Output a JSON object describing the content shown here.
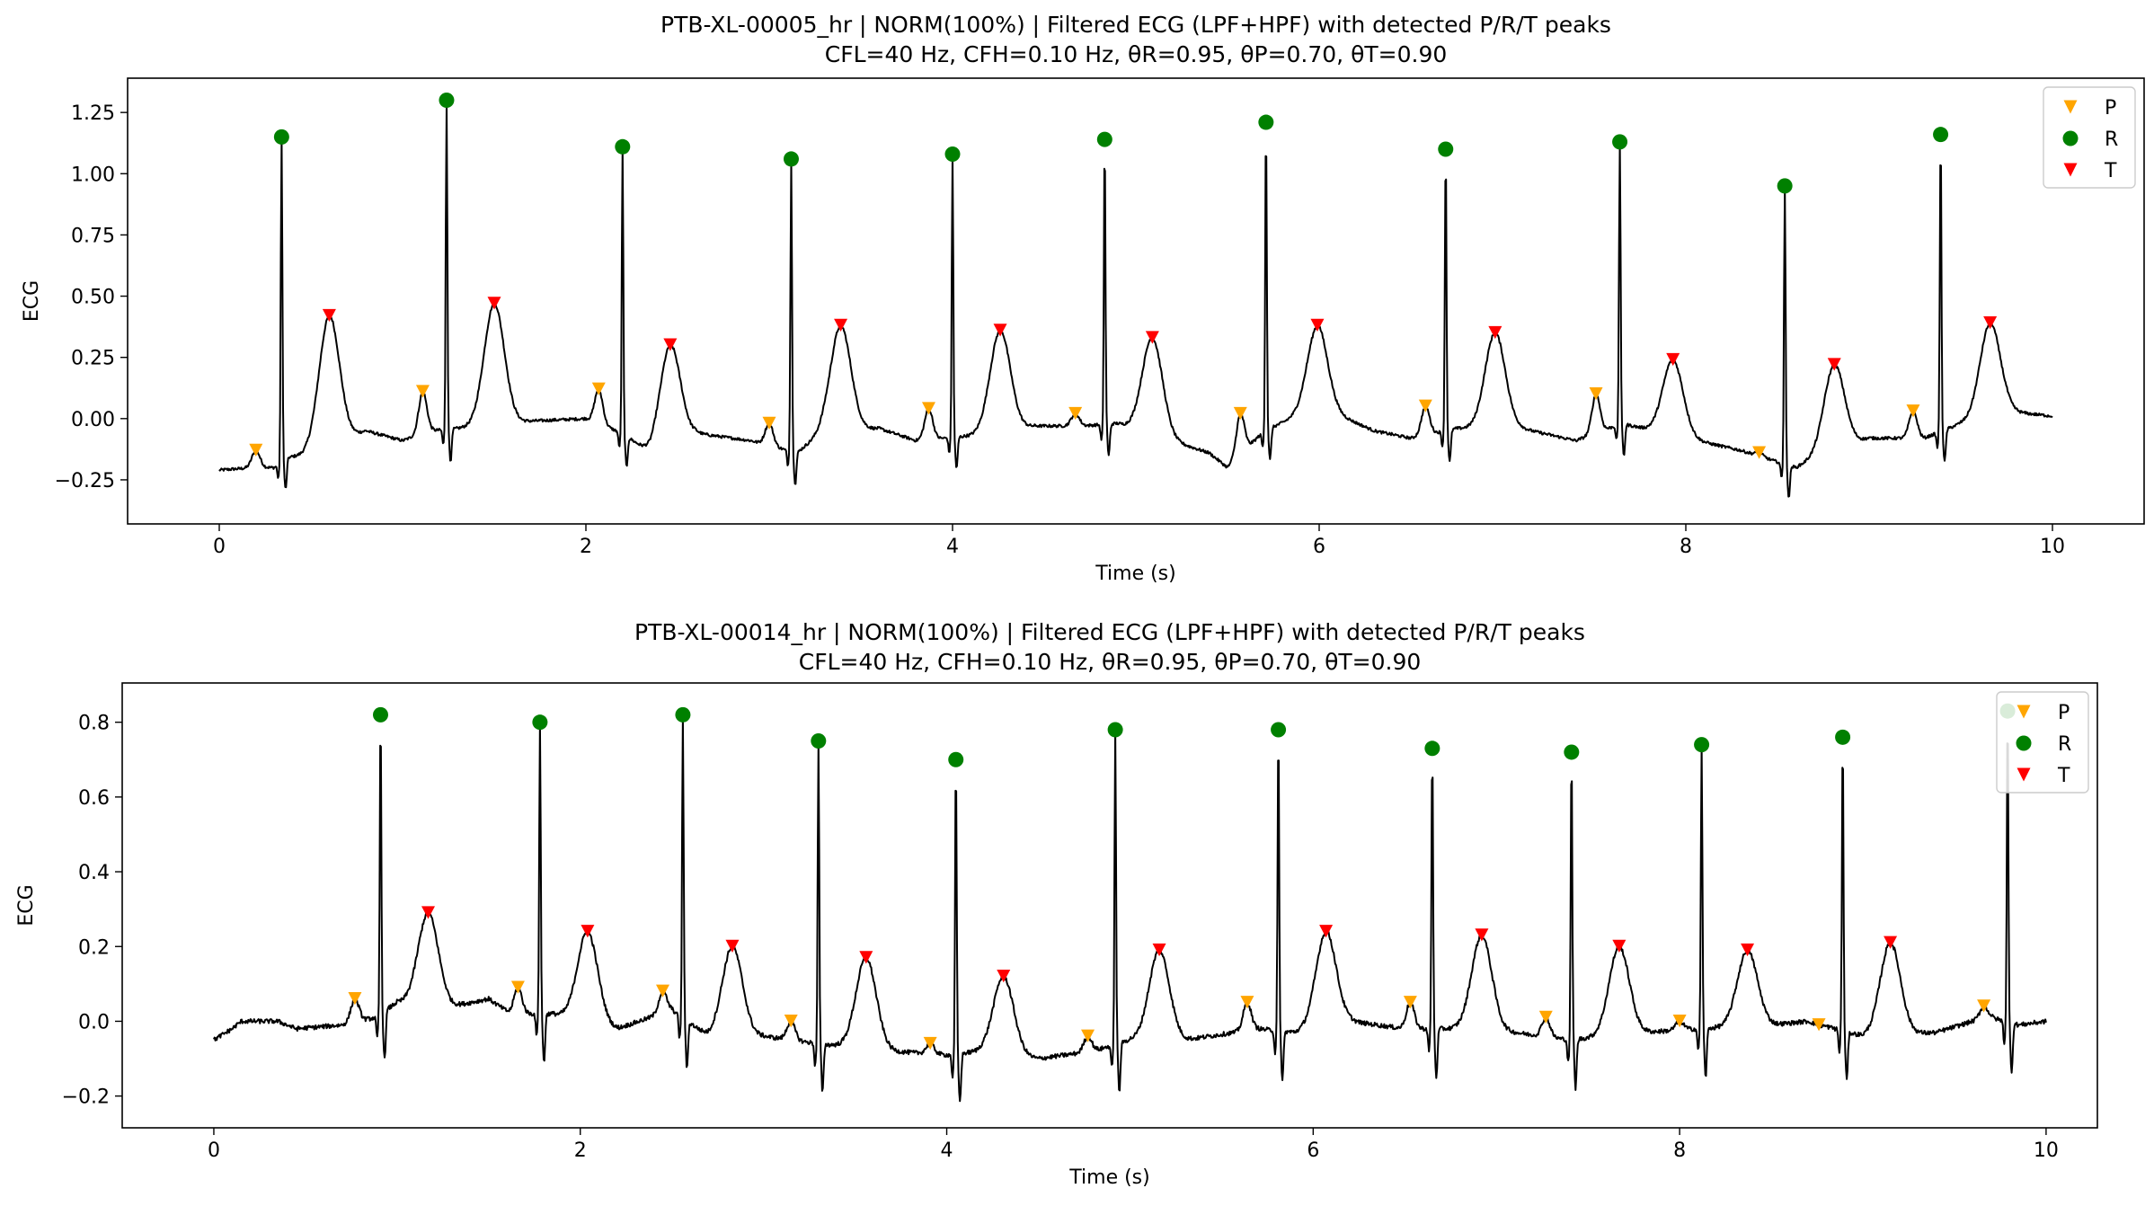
{
  "chart_data": [
    {
      "type": "line",
      "title": "PTB-XL-00005_hr | NORM(100%) | Filtered ECG (LPF+HPF) with detected P/R/T peaks",
      "subtitle": "CFL=40 Hz, CFH=0.10 Hz, θR=0.95, θP=0.70, θT=0.90",
      "xlabel": "Time (s)",
      "ylabel": "ECG",
      "xlim": [
        -0.5,
        10.5
      ],
      "ylim": [
        -0.43,
        1.39
      ],
      "xticks": [
        "0",
        "2",
        "4",
        "6",
        "8",
        "10"
      ],
      "xtick_values": [
        0,
        2,
        4,
        6,
        8,
        10
      ],
      "yticks": [
        "−0.25",
        "0.00",
        "0.25",
        "0.50",
        "0.75",
        "1.00",
        "1.25"
      ],
      "ytick_values": [
        -0.25,
        0,
        0.25,
        0.5,
        0.75,
        1.0,
        1.25
      ],
      "legend_position": "top-right",
      "legend": [
        {
          "label": "P",
          "marker": "triangle-down",
          "color": "#FFA500"
        },
        {
          "label": "R",
          "marker": "circle",
          "color": "#008000"
        },
        {
          "label": "T",
          "marker": "triangle-down",
          "color": "#FF0000"
        }
      ],
      "baseline_anchors": [
        [
          0.0,
          -0.21
        ],
        [
          0.2,
          -0.2
        ],
        [
          0.3,
          -0.2
        ],
        [
          0.36,
          -0.16
        ],
        [
          0.45,
          -0.15
        ],
        [
          0.8,
          -0.05
        ],
        [
          1.0,
          -0.09
        ],
        [
          1.15,
          -0.05
        ],
        [
          1.3,
          -0.04
        ],
        [
          1.7,
          -0.01
        ],
        [
          2.0,
          0.0
        ],
        [
          2.2,
          -0.06
        ],
        [
          2.35,
          -0.14
        ],
        [
          2.6,
          -0.06
        ],
        [
          2.9,
          -0.09
        ],
        [
          3.15,
          -0.14
        ],
        [
          3.3,
          -0.05
        ],
        [
          3.6,
          -0.04
        ],
        [
          3.8,
          -0.09
        ],
        [
          4.1,
          -0.07
        ],
        [
          4.45,
          -0.03
        ],
        [
          4.7,
          -0.03
        ],
        [
          4.9,
          -0.02
        ],
        [
          5.4,
          -0.14
        ],
        [
          5.5,
          -0.2
        ],
        [
          5.7,
          -0.05
        ],
        [
          6.0,
          0.05
        ],
        [
          6.3,
          -0.05
        ],
        [
          6.5,
          -0.08
        ],
        [
          6.75,
          -0.04
        ],
        [
          7.1,
          -0.04
        ],
        [
          7.4,
          -0.09
        ],
        [
          7.65,
          -0.02
        ],
        [
          8.0,
          -0.08
        ],
        [
          8.3,
          -0.13
        ],
        [
          8.6,
          -0.2
        ],
        [
          8.75,
          -0.14
        ],
        [
          9.0,
          -0.08
        ],
        [
          9.3,
          -0.08
        ],
        [
          9.5,
          -0.02
        ],
        [
          9.75,
          0.03
        ],
        [
          10.0,
          0.01
        ]
      ],
      "series": [
        {
          "name": "P",
          "x": [
            0.2,
            1.11,
            2.07,
            3.0,
            3.87,
            4.67,
            5.57,
            6.58,
            7.51,
            8.4,
            9.24
          ],
          "y": [
            -0.13,
            0.11,
            0.12,
            -0.02,
            0.04,
            0.02,
            0.02,
            0.05,
            0.1,
            -0.14,
            0.03
          ]
        },
        {
          "name": "R",
          "x": [
            0.34,
            1.24,
            2.2,
            3.12,
            4.0,
            4.83,
            5.71,
            6.69,
            7.64,
            8.54,
            9.39
          ],
          "y": [
            1.15,
            1.3,
            1.11,
            1.06,
            1.08,
            1.14,
            1.21,
            1.1,
            1.13,
            0.95,
            1.16
          ]
        },
        {
          "name": "T",
          "x": [
            0.6,
            1.5,
            2.46,
            3.39,
            4.26,
            5.09,
            5.99,
            6.96,
            7.93,
            8.81,
            9.66
          ],
          "y": [
            0.42,
            0.47,
            0.3,
            0.38,
            0.36,
            0.33,
            0.38,
            0.35,
            0.24,
            0.22,
            0.39
          ]
        }
      ]
    },
    {
      "type": "line",
      "title": "PTB-XL-00014_hr | NORM(100%) | Filtered ECG (LPF+HPF) with detected P/R/T peaks",
      "subtitle": "CFL=40 Hz, CFH=0.10 Hz, θR=0.95, θP=0.70, θT=0.90",
      "xlabel": "Time (s)",
      "ylabel": "ECG",
      "xlim": [
        -0.5,
        10.28
      ],
      "ylim": [
        -0.285,
        0.905
      ],
      "xticks": [
        "0",
        "2",
        "4",
        "6",
        "8",
        "10"
      ],
      "xtick_values": [
        0,
        2,
        4,
        6,
        8,
        10
      ],
      "yticks": [
        "−0.2",
        "0.0",
        "0.2",
        "0.4",
        "0.6",
        "0.8"
      ],
      "ytick_values": [
        -0.2,
        0,
        0.2,
        0.4,
        0.6,
        0.8
      ],
      "legend_position": "top-right",
      "legend": [
        {
          "label": "P",
          "marker": "triangle-down",
          "color": "#FFA500"
        },
        {
          "label": "R",
          "marker": "circle",
          "color": "#008000"
        },
        {
          "label": "T",
          "marker": "triangle-down",
          "color": "#FF0000"
        }
      ],
      "baseline_anchors": [
        [
          0.0,
          -0.05
        ],
        [
          0.1,
          -0.02
        ],
        [
          0.15,
          0.0
        ],
        [
          0.35,
          0.0
        ],
        [
          0.45,
          -0.02
        ],
        [
          0.7,
          -0.01
        ],
        [
          0.88,
          0.01
        ],
        [
          1.0,
          0.05
        ],
        [
          1.3,
          0.04
        ],
        [
          1.5,
          0.06
        ],
        [
          1.62,
          0.02
        ],
        [
          1.85,
          0.02
        ],
        [
          2.2,
          -0.02
        ],
        [
          2.5,
          0.03
        ],
        [
          2.7,
          -0.04
        ],
        [
          3.0,
          -0.04
        ],
        [
          3.3,
          -0.06
        ],
        [
          3.7,
          -0.08
        ],
        [
          4.0,
          -0.09
        ],
        [
          4.2,
          -0.08
        ],
        [
          4.5,
          -0.1
        ],
        [
          4.8,
          -0.08
        ],
        [
          5.0,
          -0.05
        ],
        [
          5.3,
          -0.05
        ],
        [
          5.7,
          -0.02
        ],
        [
          5.9,
          -0.03
        ],
        [
          6.2,
          0.0
        ],
        [
          6.5,
          -0.02
        ],
        [
          6.8,
          -0.02
        ],
        [
          7.1,
          -0.03
        ],
        [
          7.4,
          -0.05
        ],
        [
          7.8,
          -0.03
        ],
        [
          8.1,
          -0.02
        ],
        [
          8.5,
          -0.01
        ],
        [
          8.7,
          0.0
        ],
        [
          9.0,
          -0.04
        ],
        [
          9.4,
          -0.03
        ],
        [
          9.6,
          0.0
        ],
        [
          9.7,
          0.01
        ],
        [
          9.85,
          -0.01
        ],
        [
          10.0,
          0.0
        ]
      ],
      "series": [
        {
          "name": "P",
          "x": [
            0.77,
            1.66,
            2.45,
            3.15,
            3.91,
            4.77,
            5.64,
            6.53,
            7.27,
            8.0,
            8.76,
            9.66
          ],
          "y": [
            0.06,
            0.09,
            0.08,
            0.0,
            -0.06,
            -0.04,
            0.05,
            0.05,
            0.01,
            0.0,
            -0.01,
            0.04
          ]
        },
        {
          "name": "R",
          "x": [
            0.91,
            1.78,
            2.56,
            3.3,
            4.05,
            4.92,
            5.81,
            6.65,
            7.41,
            8.12,
            8.89,
            9.79
          ],
          "y": [
            0.82,
            0.8,
            0.82,
            0.75,
            0.7,
            0.78,
            0.78,
            0.73,
            0.72,
            0.74,
            0.76,
            0.83
          ]
        },
        {
          "name": "T",
          "x": [
            1.17,
            2.04,
            2.83,
            3.56,
            4.31,
            5.16,
            6.07,
            6.92,
            7.67,
            8.37,
            9.15
          ],
          "y": [
            0.29,
            0.24,
            0.2,
            0.17,
            0.12,
            0.19,
            0.24,
            0.23,
            0.2,
            0.19,
            0.21
          ]
        }
      ]
    }
  ]
}
